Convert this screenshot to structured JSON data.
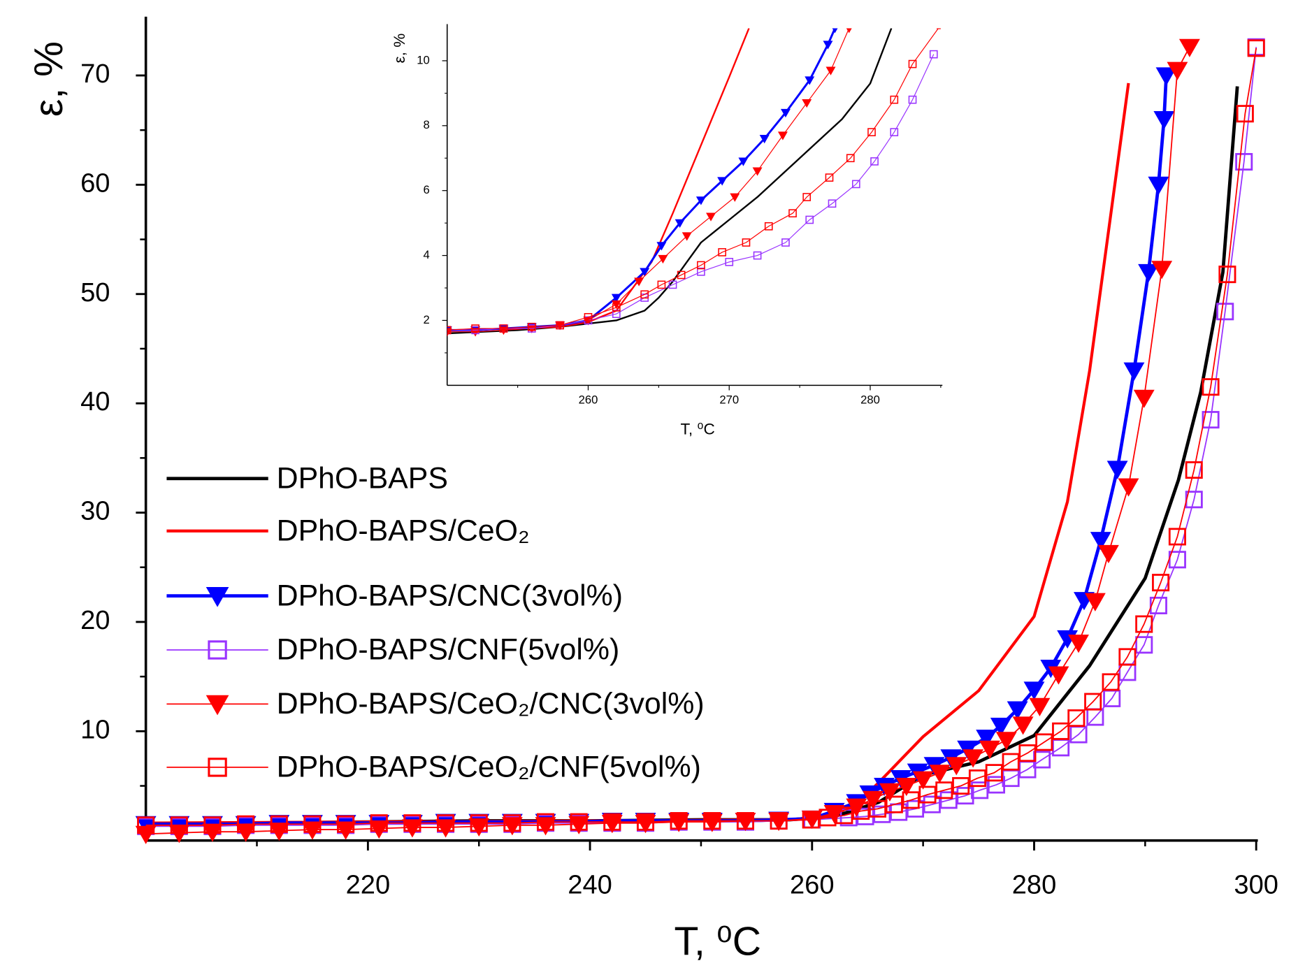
{
  "chart_data": [
    {
      "type": "line",
      "x_label": "T, ⁰C",
      "y_label": "ε, %",
      "xlim": [
        200,
        300
      ],
      "ylim": [
        0,
        75
      ],
      "xticks": [
        220,
        240,
        260,
        280,
        300
      ],
      "minor_xticks": [
        210,
        230,
        250,
        270,
        290
      ],
      "yticks": [
        10,
        20,
        30,
        40,
        50,
        60,
        70
      ],
      "minor_yticks": [
        5,
        15,
        25,
        35,
        45,
        55,
        65
      ],
      "legend": "left",
      "series": [
        {
          "name": "DPhO-BAPS",
          "color": "#000000",
          "marker": "none",
          "x": [
            200,
            210,
            220,
            230,
            240,
            250,
            258,
            262,
            266,
            270,
            275,
            280,
            285,
            290,
            293,
            295,
            297,
            298.3
          ],
          "values": [
            1.5,
            1.6,
            1.7,
            1.8,
            1.8,
            1.9,
            1.9,
            2.2,
            3.5,
            6,
            7.2,
            9.6,
            16,
            24,
            33,
            41,
            52,
            69
          ]
        },
        {
          "name": "DPhO-BAPS/CeO₂",
          "color": "#ff0000",
          "marker": "none",
          "x": [
            200,
            220,
            240,
            258,
            262,
            263.5,
            264.5,
            266,
            268,
            270,
            275,
            280,
            283,
            285,
            287,
            288.5
          ],
          "values": [
            1.6,
            1.7,
            1.8,
            1.9,
            2.3,
            3.2,
            3.8,
            5.3,
            7.4,
            9.5,
            13.7,
            20.5,
            31,
            43,
            58,
            69.3
          ]
        },
        {
          "name": "DPhO-BAPS/CNC(3vol%)",
          "color": "#0000ff",
          "marker": "triangle-down",
          "x": [
            200,
            203,
            206,
            209,
            212,
            215,
            218,
            221,
            224,
            227,
            230,
            233,
            236,
            239,
            242,
            245,
            248,
            251,
            254,
            257,
            260,
            262,
            264,
            265.2,
            266.5,
            268,
            269.5,
            271,
            272.5,
            274,
            275.7,
            277,
            278.5,
            280,
            281.5,
            283,
            284.5,
            286,
            287.5,
            289,
            290.3,
            291.2,
            291.7,
            291.9
          ],
          "values": [
            1.5,
            1.5,
            1.5,
            1.5,
            1.6,
            1.6,
            1.6,
            1.6,
            1.6,
            1.7,
            1.7,
            1.7,
            1.7,
            1.7,
            1.8,
            1.8,
            1.8,
            1.8,
            1.8,
            1.9,
            2.0,
            2.7,
            3.5,
            4.3,
            5.0,
            5.7,
            6.3,
            6.9,
            7.6,
            8.4,
            9.4,
            10.5,
            12,
            13.8,
            15.8,
            18.5,
            22,
            27.5,
            34,
            43,
            52,
            60,
            66,
            70
          ]
        },
        {
          "name": "DPhO-BAPS/CNF(5vol%)",
          "color": "#9933ff",
          "marker": "square",
          "x": [
            200,
            203,
            206,
            209,
            212,
            215,
            218,
            221,
            224,
            227,
            230,
            233,
            236,
            239,
            242,
            245,
            248,
            251,
            254,
            257,
            260,
            263.3,
            264.8,
            266.3,
            267.8,
            269.3,
            270.8,
            272.3,
            273.8,
            275.1,
            276.6,
            277.9,
            279.4,
            280.7,
            282.4,
            284,
            285.5,
            287,
            288.4,
            289.9,
            291.2,
            292.9,
            294.4,
            295.9,
            297.2,
            298.9,
            300
          ],
          "values": [
            1.3,
            1.3,
            1.3,
            1.4,
            1.4,
            1.4,
            1.4,
            1.5,
            1.5,
            1.5,
            1.5,
            1.5,
            1.6,
            1.6,
            1.6,
            1.6,
            1.7,
            1.7,
            1.7,
            1.8,
            1.9,
            2.1,
            2.2,
            2.4,
            2.6,
            2.9,
            3.3,
            3.7,
            4.1,
            4.6,
            5.1,
            5.7,
            6.5,
            7.4,
            8.5,
            9.7,
            11.3,
            13,
            15.4,
            17.9,
            21.5,
            25.7,
            31.2,
            38.5,
            48.4,
            62.1,
            72.6
          ]
        },
        {
          "name": "DPhO-BAPS/CeO₂/CNC(3vol%)",
          "color": "#ff0000",
          "marker": "triangle-down",
          "x": [
            200,
            203,
            206,
            209,
            212,
            215,
            218,
            221,
            224,
            227,
            230,
            233,
            236,
            239,
            242,
            245,
            248,
            251,
            254,
            257,
            260,
            262,
            264,
            265.5,
            267,
            268.5,
            270,
            271.5,
            273,
            274.5,
            276,
            277.5,
            279,
            280.5,
            282.2,
            284,
            285.5,
            286.7,
            288.5,
            289.9,
            291.5,
            292.9,
            294
          ],
          "values": [
            0.6,
            0.7,
            0.8,
            0.8,
            0.9,
            1.0,
            1.0,
            1.1,
            1.2,
            1.2,
            1.3,
            1.4,
            1.4,
            1.5,
            1.6,
            1.6,
            1.7,
            1.7,
            1.8,
            1.8,
            2.0,
            2.5,
            3.1,
            3.8,
            4.5,
            5.0,
            5.6,
            6.2,
            6.9,
            7.6,
            8.4,
            9.2,
            10.6,
            12.3,
            15.2,
            18.1,
            21.9,
            26.3,
            32.4,
            40.5,
            52.3,
            70.5,
            72.6
          ]
        },
        {
          "name": "DPhO-BAPS/CeO₂/CNF(5vol%)",
          "color": "#ff0000",
          "marker": "square",
          "x": [
            200,
            203,
            206,
            209,
            212,
            215,
            218,
            221,
            224,
            227,
            230,
            233,
            236,
            239,
            242,
            245,
            248,
            251,
            254,
            257,
            259.9,
            261.4,
            262.9,
            264.4,
            265.9,
            267.4,
            268.9,
            270.4,
            271.9,
            273.4,
            274.9,
            276.4,
            277.9,
            279.4,
            280.9,
            282.4,
            283.8,
            285.3,
            286.9,
            288.4,
            289.9,
            291.4,
            292.9,
            294.4,
            295.9,
            297.4,
            299,
            300
          ],
          "values": [
            1.4,
            1.4,
            1.4,
            1.5,
            1.5,
            1.5,
            1.5,
            1.6,
            1.6,
            1.6,
            1.6,
            1.6,
            1.7,
            1.7,
            1.7,
            1.7,
            1.8,
            1.8,
            1.8,
            1.8,
            1.9,
            2.1,
            2.3,
            2.7,
            2.9,
            3.3,
            3.7,
            4.2,
            4.6,
            5.0,
            5.7,
            6.2,
            7.2,
            8.0,
            9.0,
            10.0,
            11.2,
            12.7,
            14.5,
            16.8,
            19.8,
            23.6,
            27.8,
            33.9,
            41.5,
            51.8,
            66.5,
            72.5
          ]
        }
      ]
    },
    {
      "type": "line",
      "x_label": "T, ⁰C",
      "y_label": "ε, %",
      "xlim": [
        250,
        285
      ],
      "ylim": [
        0,
        11
      ],
      "xticks": [
        260,
        270,
        280
      ],
      "minor_xticks": [
        255,
        265,
        275,
        285
      ],
      "yticks": [
        2,
        4,
        6,
        8,
        10
      ],
      "minor_yticks": [
        1,
        3,
        5,
        7,
        9
      ],
      "series": [
        {
          "color": "#000000",
          "marker": "none",
          "x": [
            250,
            255,
            258,
            260,
            262,
            264,
            265,
            266,
            267,
            268,
            270,
            272,
            275,
            278,
            280,
            281.5
          ],
          "values": [
            1.6,
            1.7,
            1.8,
            1.9,
            2.0,
            2.3,
            2.7,
            3.2,
            3.8,
            4.4,
            5.1,
            5.8,
            7.0,
            8.2,
            9.3,
            11
          ]
        },
        {
          "color": "#ff0000",
          "marker": "none",
          "x": [
            250,
            255,
            258,
            260,
            262,
            263.5,
            264.5,
            266,
            268,
            270,
            271.4
          ],
          "values": [
            1.7,
            1.75,
            1.8,
            1.95,
            2.3,
            3.2,
            3.8,
            5.3,
            7.4,
            9.5,
            11
          ]
        },
        {
          "color": "#0000ff",
          "marker": "triangle-down",
          "x": [
            250,
            252,
            254,
            256,
            258,
            260,
            262,
            264,
            265.2,
            266.5,
            268,
            269.5,
            271,
            272.5,
            274,
            275.7,
            277,
            277.5
          ],
          "values": [
            1.7,
            1.7,
            1.75,
            1.8,
            1.85,
            2.0,
            2.7,
            3.5,
            4.3,
            5.0,
            5.7,
            6.3,
            6.9,
            7.6,
            8.4,
            9.4,
            10.5,
            11
          ]
        },
        {
          "color": "#ff0000",
          "marker": "triangle-down",
          "x": [
            250,
            252,
            254,
            256,
            258,
            260,
            262,
            263.6,
            265.3,
            267,
            268.7,
            270.4,
            272,
            273.8,
            275.5,
            277.2,
            278.5
          ],
          "values": [
            1.65,
            1.65,
            1.7,
            1.75,
            1.85,
            2.0,
            2.5,
            3.2,
            3.9,
            4.6,
            5.2,
            5.8,
            6.6,
            7.7,
            8.7,
            9.7,
            11
          ]
        },
        {
          "color": "#9933ff",
          "marker": "square",
          "x": [
            250,
            252,
            254,
            256,
            258,
            260,
            262,
            264,
            266,
            268,
            270,
            272,
            274,
            275.7,
            277.3,
            279,
            280.3,
            281.7,
            283,
            284.5
          ],
          "values": [
            1.7,
            1.7,
            1.75,
            1.75,
            1.85,
            2.0,
            2.2,
            2.7,
            3.1,
            3.5,
            3.8,
            4.0,
            4.4,
            5.1,
            5.6,
            6.2,
            6.9,
            7.8,
            8.8,
            10.2
          ]
        },
        {
          "color": "#ff0000",
          "marker": "square",
          "x": [
            250,
            252,
            254,
            256,
            258,
            260,
            262,
            264,
            265.2,
            266.6,
            268,
            269.5,
            271.2,
            272.8,
            274.5,
            275.5,
            277.1,
            278.6,
            280.1,
            281.7,
            283,
            285
          ],
          "values": [
            1.7,
            1.75,
            1.75,
            1.8,
            1.85,
            2.1,
            2.4,
            2.8,
            3.1,
            3.4,
            3.7,
            4.1,
            4.4,
            4.9,
            5.3,
            5.8,
            6.4,
            7.0,
            7.8,
            8.8,
            9.9,
            11.1
          ]
        }
      ]
    }
  ]
}
